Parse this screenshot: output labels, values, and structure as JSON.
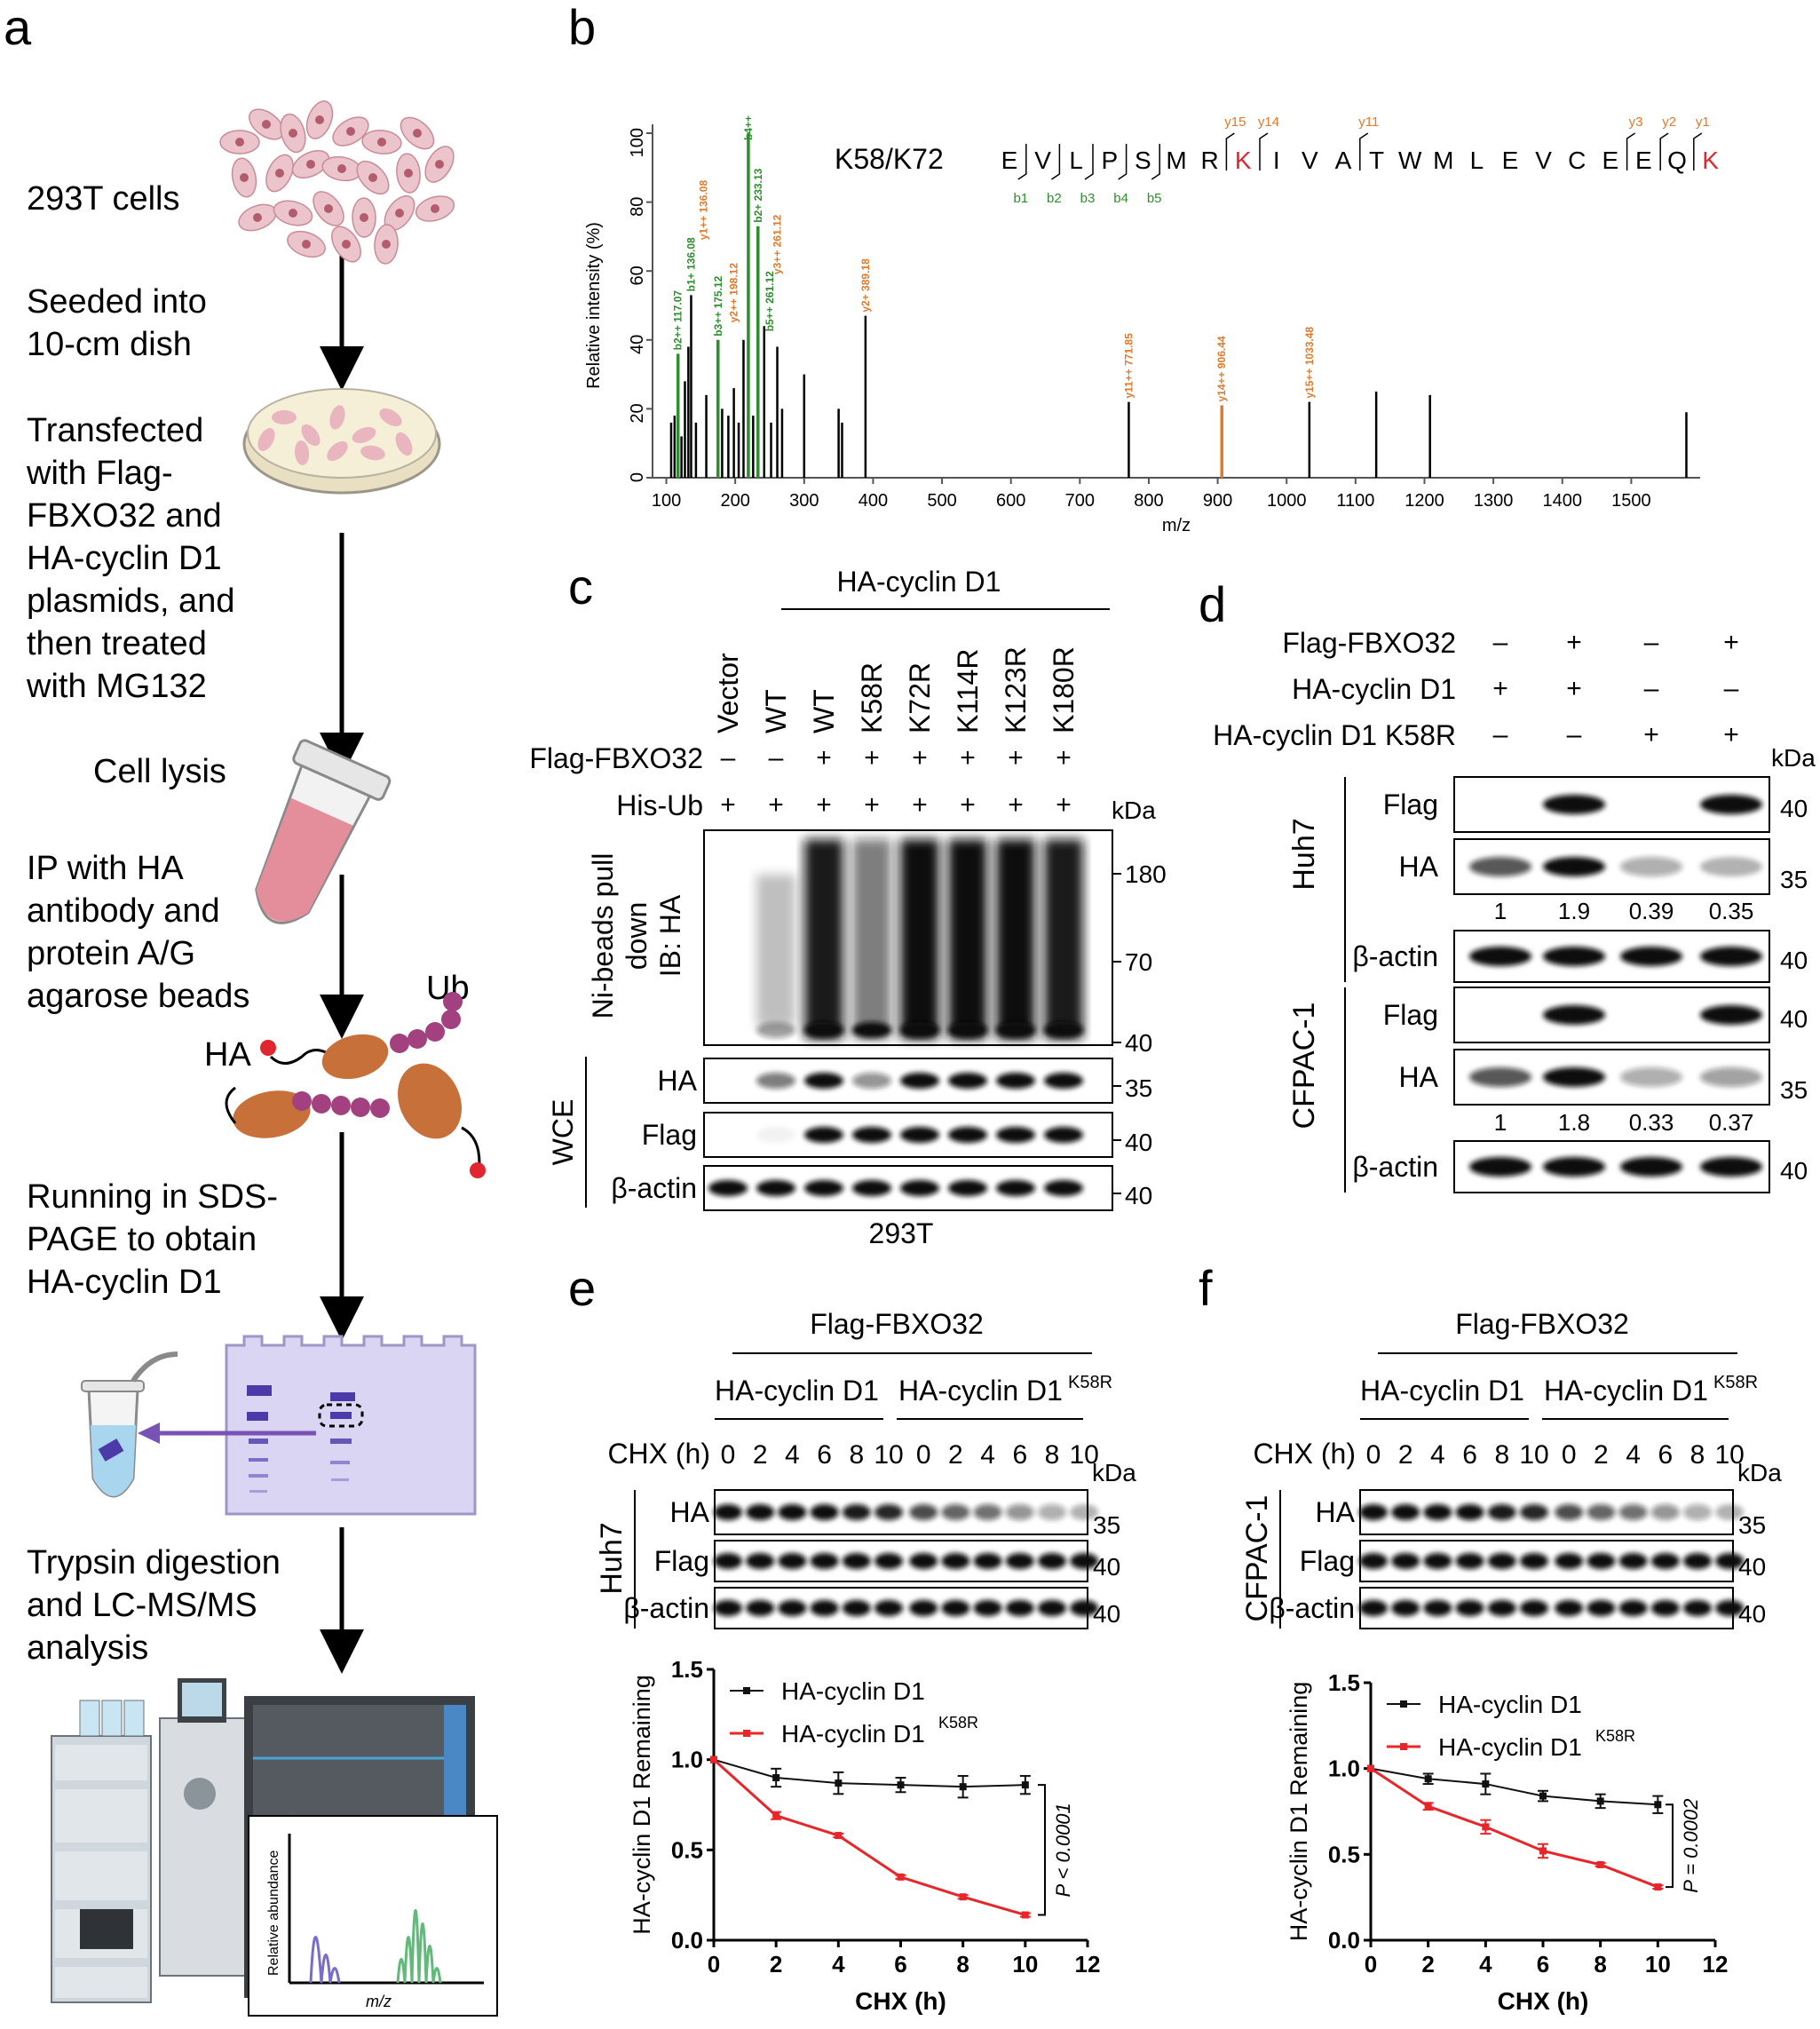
{
  "panel_labels": {
    "a": "a",
    "b": "b",
    "c": "c",
    "d": "d",
    "e": "e",
    "f": "f"
  },
  "panel_a": {
    "steps": {
      "cells": "293T cells",
      "seed_1": "Seeded into",
      "seed_2": "10-cm dish",
      "tf_1": "Transfected",
      "tf_2": "with Flag-",
      "tf_3": "FBXO32 and",
      "tf_4": "HA-cyclin D1",
      "tf_5": "plasmids, and",
      "tf_6": "then treated",
      "tf_7": "with MG132",
      "lysis": "Cell lysis",
      "ip_1": "IP with HA",
      "ip_2": "antibody and",
      "ip_3": "protein A/G",
      "ip_4": "agarose beads",
      "sds_1": "Running in SDS-",
      "sds_2": "PAGE to obtain",
      "sds_3": "HA-cyclin D1",
      "tryp_1": "Trypsin digestion",
      "tryp_2": "and LC-MS/MS",
      "tryp_3": "analysis"
    },
    "ub_label": "Ub",
    "ha_label": "HA",
    "ms_xlabel": "m/z",
    "ms_ylabel": "Relative abundance",
    "colors": {
      "cell": "#e9bcc6",
      "dish": "#f3e7c9",
      "tube": "#e58e9b",
      "bead": "#a3407f",
      "protein": "#c8703a",
      "gel": "#d9d5f2",
      "band": "#4c3aa8",
      "arrow": "#7852b4"
    }
  },
  "panel_b": {
    "peptide_label": "K58/K72",
    "sequence": [
      "E",
      "V",
      "L",
      "P",
      "S",
      "M",
      "R",
      "K",
      "I",
      "V",
      "A",
      "T",
      "W",
      "M",
      "L",
      "E",
      "V",
      "C",
      "E",
      "E",
      "Q",
      "K"
    ],
    "highlight_color": "#e0262e",
    "b_ions": [
      "b1",
      "b2",
      "b3",
      "b4",
      "b5"
    ],
    "y_ions_top": [
      "y15",
      "y14",
      "y11",
      "y3",
      "y2",
      "y1"
    ],
    "ion_colors": {
      "b": "#2f8d2f",
      "y": "#e07a2a",
      "other": "#000000"
    },
    "peak_labels": {
      "b4": "b4++",
      "b2_233": "b2+ 233.13",
      "b1_136": "b1+ 136.08",
      "b1_136y": "y1++ 136.08",
      "b2_117": "b2++ 117.07",
      "b3_175": "b3++ 175.12",
      "y2_198": "y2++ 198.12",
      "b5_261": "b5++ 261.12",
      "y3_261": "y3++ 261.12",
      "y2_389": "y2+ 389.18",
      "y11_771": "y11++ 771.85",
      "y14_906": "y14++ 906.44",
      "y15_1033": "y15++ 1033.48"
    }
  },
  "chart_data": [
    {
      "type": "bar",
      "title": "K58/K72",
      "xlabel": "m/z",
      "ylabel": "Relative intensity (%)",
      "xlim": [
        80,
        1600
      ],
      "ylim": [
        0,
        100
      ],
      "xticks": [
        100,
        200,
        300,
        400,
        500,
        600,
        700,
        800,
        900,
        1000,
        1100,
        1200,
        1300,
        1400,
        1500
      ],
      "yticks": [
        0,
        20,
        40,
        60,
        80,
        100
      ],
      "peaks": [
        {
          "x": 107,
          "y": 16,
          "c": "k"
        },
        {
          "x": 112,
          "y": 18,
          "c": "k"
        },
        {
          "x": 117,
          "y": 36,
          "c": "g"
        },
        {
          "x": 122,
          "y": 12,
          "c": "k"
        },
        {
          "x": 127,
          "y": 28,
          "c": "k"
        },
        {
          "x": 132,
          "y": 38,
          "c": "k"
        },
        {
          "x": 136,
          "y": 53,
          "c": "k"
        },
        {
          "x": 143,
          "y": 16,
          "c": "k"
        },
        {
          "x": 158,
          "y": 24,
          "c": "k"
        },
        {
          "x": 175,
          "y": 40,
          "c": "g"
        },
        {
          "x": 181,
          "y": 20,
          "c": "k"
        },
        {
          "x": 190,
          "y": 18,
          "c": "k"
        },
        {
          "x": 198,
          "y": 26,
          "c": "k"
        },
        {
          "x": 205,
          "y": 16,
          "c": "k"
        },
        {
          "x": 212,
          "y": 40,
          "c": "k"
        },
        {
          "x": 219,
          "y": 100,
          "c": "g"
        },
        {
          "x": 226,
          "y": 18,
          "c": "k"
        },
        {
          "x": 233,
          "y": 73,
          "c": "g"
        },
        {
          "x": 242,
          "y": 44,
          "c": "k"
        },
        {
          "x": 252,
          "y": 16,
          "c": "k"
        },
        {
          "x": 261,
          "y": 38,
          "c": "k"
        },
        {
          "x": 268,
          "y": 20,
          "c": "k"
        },
        {
          "x": 300,
          "y": 30,
          "c": "k"
        },
        {
          "x": 350,
          "y": 20,
          "c": "k"
        },
        {
          "x": 355,
          "y": 16,
          "c": "k"
        },
        {
          "x": 389,
          "y": 47,
          "c": "k"
        },
        {
          "x": 771,
          "y": 22,
          "c": "k"
        },
        {
          "x": 906,
          "y": 21,
          "c": "o"
        },
        {
          "x": 1033,
          "y": 22,
          "c": "k"
        },
        {
          "x": 1130,
          "y": 25,
          "c": "k"
        },
        {
          "x": 1208,
          "y": 24,
          "c": "k"
        },
        {
          "x": 1580,
          "y": 19,
          "c": "k"
        }
      ]
    },
    {
      "type": "line",
      "title": "Huh7",
      "xlabel": "CHX (h)",
      "ylabel": "HA-cyclin D1 Remaining",
      "xlim": [
        0,
        12
      ],
      "ylim": [
        0,
        1.5
      ],
      "xticks": [
        0,
        2,
        4,
        6,
        8,
        10,
        12
      ],
      "yticks": [
        0.0,
        0.5,
        1.0,
        1.5
      ],
      "x": [
        0,
        2,
        4,
        6,
        8,
        10
      ],
      "series": [
        {
          "name": "HA-cyclin D1",
          "values": [
            1.0,
            0.9,
            0.87,
            0.86,
            0.85,
            0.86
          ],
          "errors": [
            0,
            0.05,
            0.06,
            0.04,
            0.06,
            0.05
          ]
        },
        {
          "name": "HA-cyclin D1K58R",
          "values": [
            1.0,
            0.69,
            0.58,
            0.35,
            0.24,
            0.14
          ],
          "errors": [
            0,
            0.02,
            0.01,
            0.01,
            0.01,
            0.01
          ]
        }
      ],
      "stat": "P < 0.0001"
    },
    {
      "type": "line",
      "title": "CFPAC-1",
      "xlabel": "CHX (h)",
      "ylabel": "HA-cyclin D1 Remaining",
      "xlim": [
        0,
        12
      ],
      "ylim": [
        0,
        1.5
      ],
      "xticks": [
        0,
        2,
        4,
        6,
        8,
        10,
        12
      ],
      "yticks": [
        0.0,
        0.5,
        1.0,
        1.5
      ],
      "x": [
        0,
        2,
        4,
        6,
        8,
        10
      ],
      "series": [
        {
          "name": "HA-cyclin D1",
          "values": [
            1.0,
            0.94,
            0.91,
            0.84,
            0.81,
            0.79
          ],
          "errors": [
            0,
            0.03,
            0.06,
            0.03,
            0.04,
            0.05
          ]
        },
        {
          "name": "HA-cyclin D1K58R",
          "values": [
            1.0,
            0.78,
            0.66,
            0.52,
            0.44,
            0.31
          ],
          "errors": [
            0,
            0.02,
            0.04,
            0.04,
            0.01,
            0.01
          ]
        }
      ],
      "stat": "P = 0.0002"
    }
  ],
  "panel_c": {
    "group_label": "HA-cyclin D1",
    "lanes": [
      "Vector",
      "WT",
      "WT",
      "K58R",
      "K72R",
      "K114R",
      "K123R",
      "K180R"
    ],
    "row_flag_label": "Flag-FBXO32",
    "row_flag": [
      "–",
      "–",
      "+",
      "+",
      "+",
      "+",
      "+",
      "+"
    ],
    "row_hisub_label": "His-Ub",
    "row_hisub": [
      "+",
      "+",
      "+",
      "+",
      "+",
      "+",
      "+",
      "+"
    ],
    "kda": "kDa",
    "pd_label_1": "Ni-beads pull",
    "pd_label_2": "down",
    "pd_label_3": "IB: HA",
    "pd_markers": [
      "180",
      "70",
      "40"
    ],
    "wce_label": "WCE",
    "blots": [
      {
        "name": "HA",
        "kda": "35"
      },
      {
        "name": "Flag",
        "kda": "40"
      },
      {
        "name": "β-actin",
        "kda": "40"
      }
    ],
    "cell_line": "293T"
  },
  "panel_d": {
    "rows": [
      {
        "label": "Flag-FBXO32",
        "vals": [
          "–",
          "+",
          "–",
          "+"
        ]
      },
      {
        "label": "HA-cyclin D1",
        "vals": [
          "+",
          "+",
          "–",
          "–"
        ]
      },
      {
        "label": "HA-cyclin D1 K58R",
        "vals": [
          "–",
          "–",
          "+",
          "+"
        ]
      }
    ],
    "kda": "kDa",
    "groups": [
      {
        "cell": "Huh7",
        "blots": [
          {
            "name": "Flag",
            "kda": "40"
          },
          {
            "name": "HA",
            "kda": "35"
          },
          {
            "name": "β-actin",
            "kda": "40"
          }
        ],
        "quant": [
          "1",
          "1.9",
          "0.39",
          "0.35"
        ]
      },
      {
        "cell": "CFPAC-1",
        "blots": [
          {
            "name": "Flag",
            "kda": "40"
          },
          {
            "name": "HA",
            "kda": "35"
          },
          {
            "name": "β-actin",
            "kda": "40"
          }
        ],
        "quant": [
          "1",
          "1.8",
          "0.33",
          "0.37"
        ]
      }
    ]
  },
  "panel_e": {
    "top_label": "Flag-FBXO32",
    "group_left": "HA-cyclin D1",
    "group_right": "HA-cyclin D1",
    "group_right_sup": "K58R",
    "chx_label": "CHX (h)",
    "times": [
      "0",
      "2",
      "4",
      "6",
      "8",
      "10",
      "0",
      "2",
      "4",
      "6",
      "8",
      "10"
    ],
    "kda": "kDa",
    "cell": "Huh7",
    "blots": [
      {
        "name": "HA",
        "kda": "35"
      },
      {
        "name": "Flag",
        "kda": "40"
      },
      {
        "name": "β-actin",
        "kda": "40"
      }
    ],
    "legend": {
      "a": "HA-cyclin D1",
      "b": "HA-cyclin D1",
      "b_sup": "K58R"
    }
  },
  "panel_f": {
    "top_label": "Flag-FBXO32",
    "group_left": "HA-cyclin D1",
    "group_right": "HA-cyclin D1",
    "group_right_sup": "K58R",
    "chx_label": "CHX (h)",
    "times": [
      "0",
      "2",
      "4",
      "6",
      "8",
      "10",
      "0",
      "2",
      "4",
      "6",
      "8",
      "10"
    ],
    "kda": "kDa",
    "cell": "CFPAC-1",
    "blots": [
      {
        "name": "HA",
        "kda": "35"
      },
      {
        "name": "Flag",
        "kda": "40"
      },
      {
        "name": "β-actin",
        "kda": "40"
      }
    ],
    "legend": {
      "a": "HA-cyclin D1",
      "b": "HA-cyclin D1",
      "b_sup": "K58R"
    }
  }
}
